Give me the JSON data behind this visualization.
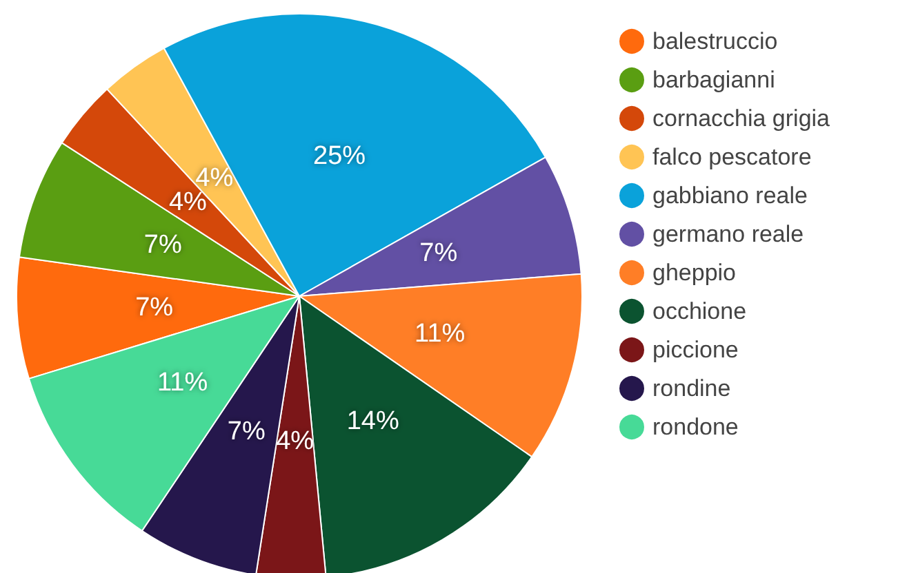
{
  "chart_data": {
    "type": "pie",
    "categories": [
      "balestruccio",
      "barbagianni",
      "cornacchia grigia",
      "falco pescatore",
      "gabbiano reale",
      "germano reale",
      "gheppio",
      "occhione",
      "piccione",
      "rondine",
      "rondone"
    ],
    "values": [
      7,
      7,
      4,
      4,
      25,
      7,
      11,
      14,
      4,
      7,
      11
    ],
    "value_labels": [
      "7%",
      "7%",
      "4%",
      "4%",
      "25%",
      "7%",
      "11%",
      "14%",
      "4%",
      "7%",
      "11%"
    ],
    "colors": [
      "#ff6a0d",
      "#5a9e12",
      "#d4480a",
      "#ffc454",
      "#0aa2da",
      "#6250a4",
      "#ff7e26",
      "#0b5330",
      "#7b1618",
      "#25174c",
      "#47da97"
    ],
    "legend": "right"
  }
}
